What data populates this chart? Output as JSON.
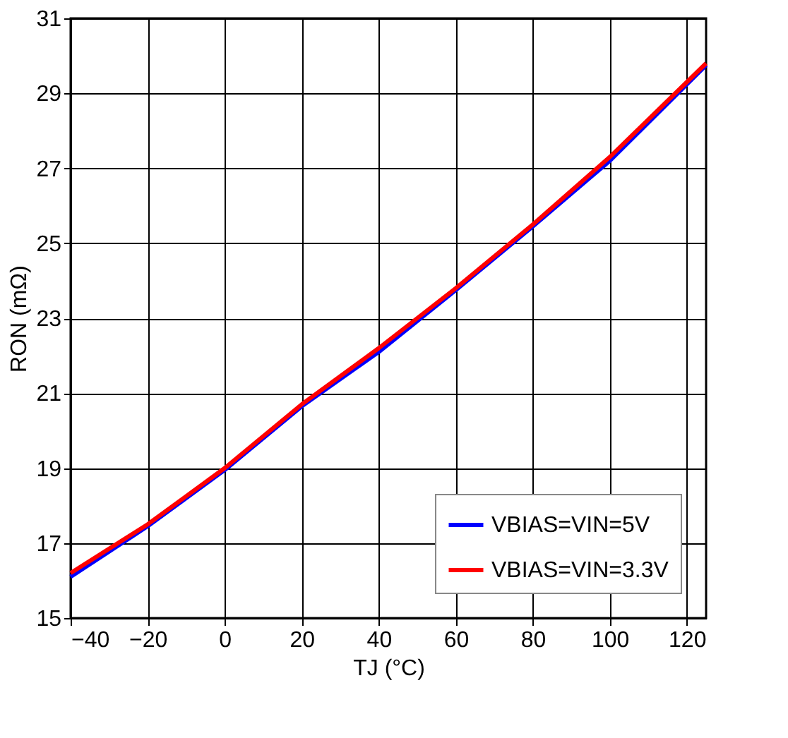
{
  "chart_data": {
    "type": "line",
    "xlabel": "TJ (°C)",
    "ylabel": "RON (mΩ)",
    "x": [
      -40,
      -20,
      0,
      20,
      40,
      60,
      80,
      100,
      125
    ],
    "series": [
      {
        "name": "VBIAS=VIN=5V",
        "color": "#0000ff",
        "values": [
          16.1,
          17.45,
          18.95,
          20.65,
          22.1,
          23.75,
          25.45,
          27.2,
          29.75
        ]
      },
      {
        "name": "VBIAS=VIN=3.3V",
        "color": "#ff0000",
        "values": [
          16.2,
          17.5,
          19.0,
          20.7,
          22.2,
          23.8,
          25.5,
          27.3,
          29.8
        ]
      }
    ],
    "xlim": [
      -40,
      125
    ],
    "xticks": [
      -40,
      -20,
      0,
      20,
      40,
      60,
      80,
      100,
      120
    ],
    "ylim": [
      15,
      31
    ],
    "yticks": [
      15,
      17,
      19,
      21,
      23,
      25,
      27,
      29,
      31
    ],
    "grid": true,
    "legend": "bottom right",
    "marker": "none",
    "line_style": "solid"
  }
}
